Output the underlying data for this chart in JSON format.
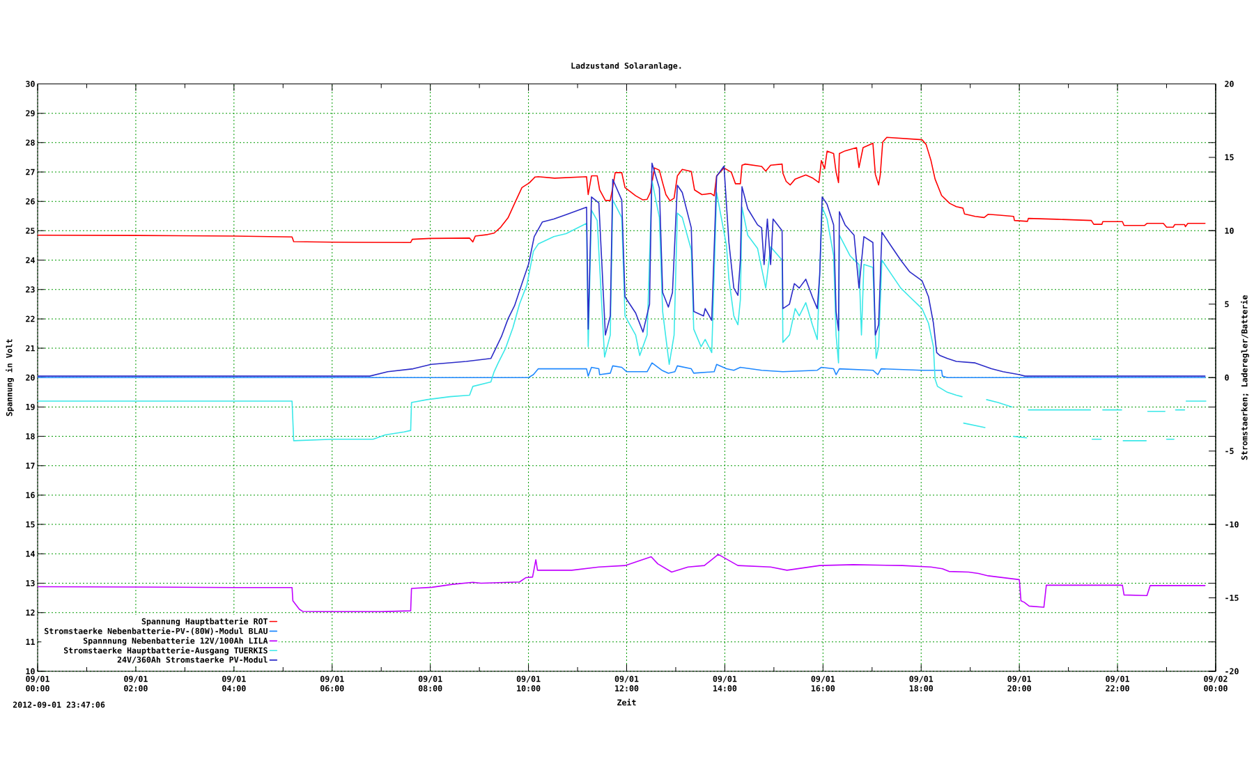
{
  "chart_data": {
    "type": "line",
    "title": "Ladzustand Solaranlage.",
    "xlabel": "Zeit",
    "ylabel": "Spannung in Volt",
    "y2label": "Stromstaerken; Laderegler/Batterie",
    "annotations": [
      "2012-09-01 23:47:06"
    ],
    "xlim": [
      "2012-09-01T00:00",
      "2012-09-02T00:00"
    ],
    "xticks": [
      {
        "value": "2012-09-01T00:00",
        "label": "09/01 00:00"
      },
      {
        "value": "2012-09-01T01:00",
        "label": null
      },
      {
        "value": "2012-09-01T02:00",
        "label": "09/01 02:00"
      },
      {
        "value": "2012-09-01T03:00",
        "label": null
      },
      {
        "value": "2012-09-01T04:00",
        "label": "09/01 04:00"
      },
      {
        "value": "2012-09-01T05:00",
        "label": null
      },
      {
        "value": "2012-09-01T06:00",
        "label": "09/01 06:00"
      },
      {
        "value": "2012-09-01T07:00",
        "label": null
      },
      {
        "value": "2012-09-01T08:00",
        "label": "09/01 08:00"
      },
      {
        "value": "2012-09-01T09:00",
        "label": null
      },
      {
        "value": "2012-09-01T10:00",
        "label": "09/01 10:00"
      },
      {
        "value": "2012-09-01T11:00",
        "label": null
      },
      {
        "value": "2012-09-01T12:00",
        "label": "09/01 12:00"
      },
      {
        "value": "2012-09-01T13:00",
        "label": null
      },
      {
        "value": "2012-09-01T14:00",
        "label": "09/01 14:00"
      },
      {
        "value": "2012-09-01T15:00",
        "label": null
      },
      {
        "value": "2012-09-01T16:00",
        "label": "09/01 16:00"
      },
      {
        "value": "2012-09-01T17:00",
        "label": null
      },
      {
        "value": "2012-09-01T18:00",
        "label": "09/01 18:00"
      },
      {
        "value": "2012-09-01T19:00",
        "label": null
      },
      {
        "value": "2012-09-01T20:00",
        "label": "09/01 20:00"
      },
      {
        "value": "2012-09-01T21:00",
        "label": null
      },
      {
        "value": "2012-09-01T22:00",
        "label": "09/01 22:00"
      },
      {
        "value": "2012-09-01T23:00",
        "label": null
      },
      {
        "value": "2012-09-02T00:00",
        "label": "09/02 00:00"
      }
    ],
    "ylim": [
      10,
      30
    ],
    "yticks": [
      10,
      11,
      12,
      13,
      14,
      15,
      16,
      17,
      18,
      19,
      20,
      21,
      22,
      23,
      24,
      25,
      26,
      27,
      28,
      29,
      30
    ],
    "y2lim": [
      -20,
      20
    ],
    "y2ticks": [
      -20,
      -15,
      -10,
      -5,
      0,
      5,
      10,
      15,
      20
    ],
    "grid": true,
    "legend": "bottom left",
    "series": [
      {
        "name": "Spannung Hauptbatterie ROT",
        "color": "#ff0000",
        "x": [
          "2012-09-01T00:00",
          "2012-09-01T02:00",
          "2012-09-01T04:00",
          "2012-09-01T05:11",
          "2012-09-01T05:13",
          "2012-09-01T06:00",
          "2012-09-01T07:36",
          "2012-09-01T07:38",
          "2012-09-01T08:00",
          "2012-09-01T08:48",
          "2012-09-01T08:52",
          "2012-09-01T08:55",
          "2012-09-01T09:10",
          "2012-09-01T09:18",
          "2012-09-01T09:26",
          "2012-09-01T09:35",
          "2012-09-01T09:44",
          "2012-09-01T09:52",
          "2012-09-01T10:01",
          "2012-09-01T10:08",
          "2012-09-01T10:12",
          "2012-09-01T10:32",
          "2012-09-01T11:11",
          "2012-09-01T11:13",
          "2012-09-01T11:17",
          "2012-09-01T11:24",
          "2012-09-01T11:27",
          "2012-09-01T11:34",
          "2012-09-01T11:40",
          "2012-09-01T11:43",
          "2012-09-01T11:46",
          "2012-09-01T11:54",
          "2012-09-01T11:58",
          "2012-09-01T12:11",
          "2012-09-01T12:20",
          "2012-09-01T12:25",
          "2012-09-01T12:29",
          "2012-09-01T12:34",
          "2012-09-01T12:40",
          "2012-09-01T12:44",
          "2012-09-01T12:48",
          "2012-09-01T12:53",
          "2012-09-01T12:58",
          "2012-09-01T13:02",
          "2012-09-01T13:08",
          "2012-09-01T13:19",
          "2012-09-01T13:23",
          "2012-09-01T13:32",
          "2012-09-01T13:43",
          "2012-09-01T13:47",
          "2012-09-01T13:50",
          "2012-09-01T13:59",
          "2012-09-01T14:08",
          "2012-09-01T14:13",
          "2012-09-01T14:19",
          "2012-09-01T14:21",
          "2012-09-01T14:25",
          "2012-09-01T14:45",
          "2012-09-01T14:50",
          "2012-09-01T14:56",
          "2012-09-01T15:10",
          "2012-09-01T15:11",
          "2012-09-01T15:15",
          "2012-09-01T15:20",
          "2012-09-01T15:26",
          "2012-09-01T15:39",
          "2012-09-01T15:47",
          "2012-09-01T15:55",
          "2012-09-01T15:58",
          "2012-09-01T16:02",
          "2012-09-01T16:05",
          "2012-09-01T16:13",
          "2012-09-01T16:16",
          "2012-09-01T16:19",
          "2012-09-01T16:20",
          "2012-09-01T16:27",
          "2012-09-01T16:41",
          "2012-09-01T16:44",
          "2012-09-01T16:49",
          "2012-09-01T17:01",
          "2012-09-01T17:04",
          "2012-09-01T17:08",
          "2012-09-01T17:10",
          "2012-09-01T17:13",
          "2012-09-01T17:18",
          "2012-09-01T18:01",
          "2012-09-01T18:06",
          "2012-09-01T18:12",
          "2012-09-01T18:17",
          "2012-09-01T18:25",
          "2012-09-01T18:35",
          "2012-09-01T18:43",
          "2012-09-01T18:51",
          "2012-09-01T18:53",
          "2012-09-01T19:06",
          "2012-09-01T19:17",
          "2012-09-01T19:22",
          "2012-09-01T19:36",
          "2012-09-01T19:53",
          "2012-09-01T19:54",
          "2012-09-01T20:10",
          "2012-09-01T20:11",
          "2012-09-01T20:46",
          "2012-09-01T21:28",
          "2012-09-01T21:31",
          "2012-09-01T21:41",
          "2012-09-01T21:42",
          "2012-09-01T22:06",
          "2012-09-01T22:08",
          "2012-09-01T22:33",
          "2012-09-01T22:36",
          "2012-09-01T22:56",
          "2012-09-01T23:00",
          "2012-09-01T23:08",
          "2012-09-01T23:10",
          "2012-09-01T23:22",
          "2012-09-01T23:23",
          "2012-09-01T23:26",
          "2012-09-01T23:47"
        ],
        "values": [
          24.85,
          24.84,
          24.82,
          24.79,
          24.63,
          24.61,
          24.6,
          24.71,
          24.74,
          24.75,
          24.62,
          24.82,
          24.87,
          24.92,
          25.12,
          25.44,
          25.99,
          26.47,
          26.63,
          26.83,
          26.84,
          26.79,
          26.84,
          26.23,
          26.87,
          26.87,
          26.39,
          26.03,
          26.03,
          26.47,
          26.98,
          26.98,
          26.47,
          26.19,
          26.05,
          26.07,
          26.31,
          27.14,
          27.06,
          26.63,
          26.23,
          26.02,
          26.11,
          26.87,
          27.09,
          27.02,
          26.39,
          26.23,
          26.27,
          26.19,
          26.87,
          27.14,
          26.99,
          26.6,
          26.6,
          27.23,
          27.27,
          27.19,
          27.03,
          27.23,
          27.27,
          26.96,
          26.68,
          26.56,
          26.76,
          26.9,
          26.8,
          26.64,
          27.39,
          27.11,
          27.71,
          27.63,
          27.0,
          26.64,
          27.63,
          27.72,
          27.83,
          27.15,
          27.83,
          27.98,
          26.92,
          26.56,
          26.9,
          28.02,
          28.18,
          28.1,
          27.94,
          27.39,
          26.76,
          26.2,
          25.93,
          25.82,
          25.77,
          25.57,
          25.49,
          25.45,
          25.56,
          25.53,
          25.49,
          25.35,
          25.32,
          25.42,
          25.39,
          25.35,
          25.22,
          25.22,
          25.31,
          25.31,
          25.18,
          25.18,
          25.25,
          25.25,
          25.12,
          25.12,
          25.21,
          25.21,
          25.14,
          25.25,
          25.25
        ]
      },
      {
        "name": "Stromstaerke Nebenbatterie-PV-(80W)-Modul BLAU",
        "color": "#1e88ff",
        "axis": "y2",
        "x": [
          "2012-09-01T00:00",
          "2012-09-01T09:54",
          "2012-09-01T10:00",
          "2012-09-01T10:06",
          "2012-09-01T10:12",
          "2012-09-01T11:11",
          "2012-09-01T11:13",
          "2012-09-01T11:17",
          "2012-09-01T11:26",
          "2012-09-01T11:27",
          "2012-09-01T11:40",
          "2012-09-01T11:43",
          "2012-09-01T11:54",
          "2012-09-01T12:00",
          "2012-09-01T12:25",
          "2012-09-01T12:31",
          "2012-09-01T12:43",
          "2012-09-01T12:51",
          "2012-09-01T12:59",
          "2012-09-01T13:02",
          "2012-09-01T13:19",
          "2012-09-01T13:22",
          "2012-09-01T13:47",
          "2012-09-01T13:50",
          "2012-09-01T14:02",
          "2012-09-01T14:11",
          "2012-09-01T14:19",
          "2012-09-01T14:45",
          "2012-09-01T15:11",
          "2012-09-01T15:53",
          "2012-09-01T15:58",
          "2012-09-01T16:13",
          "2012-09-01T16:16",
          "2012-09-01T16:20",
          "2012-09-01T17:01",
          "2012-09-01T17:07",
          "2012-09-01T17:11",
          "2012-09-01T18:01",
          "2012-09-01T18:25",
          "2012-09-01T18:26",
          "2012-09-01T18:32",
          "2012-09-01T23:47"
        ],
        "values": [
          0,
          0,
          0,
          0.2,
          0.6,
          0.6,
          0.1,
          0.7,
          0.6,
          0.2,
          0.3,
          0.8,
          0.7,
          0.4,
          0.4,
          1.0,
          0.5,
          0.3,
          0.4,
          0.8,
          0.6,
          0.3,
          0.4,
          0.9,
          0.6,
          0.5,
          0.7,
          0.5,
          0.4,
          0.5,
          0.7,
          0.6,
          0.2,
          0.6,
          0.5,
          0.2,
          0.6,
          0.5,
          0.5,
          0.1,
          0,
          0
        ]
      },
      {
        "name": "Spannnung Nebenbatterie 12V/100Ah LILA",
        "color": "#c000ff",
        "x": [
          "2012-09-01T00:00",
          "2012-09-01T02:00",
          "2012-09-01T04:00",
          "2012-09-01T05:11",
          "2012-09-01T05:12",
          "2012-09-01T05:20",
          "2012-09-01T05:24",
          "2012-09-01T06:00",
          "2012-09-01T07:00",
          "2012-09-01T07:36",
          "2012-09-01T07:37",
          "2012-09-01T08:02",
          "2012-09-01T08:27",
          "2012-09-01T08:52",
          "2012-09-01T09:02",
          "2012-09-01T09:49",
          "2012-09-01T09:57",
          "2012-09-01T10:05",
          "2012-09-01T10:09",
          "2012-09-01T10:11",
          "2012-09-01T10:53",
          "2012-09-01T11:26",
          "2012-09-01T11:58",
          "2012-09-01T12:30",
          "2012-09-01T12:38",
          "2012-09-01T12:55",
          "2012-09-01T13:15",
          "2012-09-01T13:35",
          "2012-09-01T13:52",
          "2012-09-01T14:16",
          "2012-09-01T14:56",
          "2012-09-01T15:16",
          "2012-09-01T15:56",
          "2012-09-01T16:37",
          "2012-09-01T17:37",
          "2012-09-01T18:12",
          "2012-09-01T18:26",
          "2012-09-01T18:34",
          "2012-09-01T18:58",
          "2012-09-01T19:10",
          "2012-09-01T19:22",
          "2012-09-01T20:00",
          "2012-09-01T20:02",
          "2012-09-01T20:06",
          "2012-09-01T20:12",
          "2012-09-01T20:30",
          "2012-09-01T20:33",
          "2012-09-01T22:06",
          "2012-09-01T22:08",
          "2012-09-01T22:36",
          "2012-09-01T22:40",
          "2012-09-01T23:47"
        ],
        "values": [
          12.88,
          12.87,
          12.85,
          12.85,
          12.4,
          12.11,
          12.04,
          12.03,
          12.03,
          12.06,
          12.82,
          12.86,
          12.96,
          13.03,
          13.0,
          13.04,
          13.19,
          13.21,
          13.8,
          13.44,
          13.44,
          13.55,
          13.6,
          13.9,
          13.66,
          13.38,
          13.55,
          13.6,
          13.98,
          13.6,
          13.55,
          13.44,
          13.6,
          13.63,
          13.6,
          13.55,
          13.49,
          13.4,
          13.38,
          13.33,
          13.25,
          13.12,
          12.4,
          12.35,
          12.22,
          12.18,
          12.93,
          12.93,
          12.6,
          12.58,
          12.92,
          12.92
        ]
      },
      {
        "name": "Stromstaerke Hauptbatterie-Ausgang TUERKIS",
        "color": "#3ae8e8",
        "axis": "y2",
        "x": [
          "2012-09-01T00:00",
          "2012-09-01T05:11",
          "2012-09-01T05:13",
          "2012-09-01T06:02",
          "2012-09-01T06:50",
          "2012-09-01T07:05",
          "2012-09-01T07:28",
          "2012-09-01T07:36",
          "2012-09-01T07:37",
          "2012-09-01T07:56",
          "2012-09-01T08:24",
          "2012-09-01T08:48",
          "2012-09-01T08:52",
          "2012-09-01T09:14",
          "2012-09-01T09:18",
          "2012-09-01T09:23",
          "2012-09-01T09:32",
          "2012-09-01T09:41",
          "2012-09-01T09:49",
          "2012-09-01T09:58",
          "2012-09-01T10:06",
          "2012-09-01T10:12",
          "2012-09-01T10:31",
          "2012-09-01T10:46",
          "2012-09-01T11:11",
          "2012-09-01T11:13",
          "2012-09-01T11:17",
          "2012-09-01T11:24",
          "2012-09-01T11:33",
          "2012-09-01T11:40",
          "2012-09-01T11:43",
          "2012-09-01T11:54",
          "2012-09-01T11:58",
          "2012-09-01T12:11",
          "2012-09-01T12:16",
          "2012-09-01T12:25",
          "2012-09-01T12:31",
          "2012-09-01T12:40",
          "2012-09-01T12:44",
          "2012-09-01T12:52",
          "2012-09-01T12:58",
          "2012-09-01T13:02",
          "2012-09-01T13:08",
          "2012-09-01T13:19",
          "2012-09-01T13:22",
          "2012-09-01T13:31",
          "2012-09-01T13:36",
          "2012-09-01T13:44",
          "2012-09-01T13:50",
          "2012-09-01T14:02",
          "2012-09-01T14:05",
          "2012-09-01T14:11",
          "2012-09-01T14:16",
          "2012-09-01T14:19",
          "2012-09-01T14:21",
          "2012-09-01T14:28",
          "2012-09-01T14:40",
          "2012-09-01T14:50",
          "2012-09-01T14:56",
          "2012-09-01T15:10",
          "2012-09-01T15:11",
          "2012-09-01T15:19",
          "2012-09-01T15:26",
          "2012-09-01T15:31",
          "2012-09-01T15:39",
          "2012-09-01T15:47",
          "2012-09-01T15:53",
          "2012-09-01T15:59",
          "2012-09-01T16:05",
          "2012-09-01T16:13",
          "2012-09-01T16:16",
          "2012-09-01T16:19",
          "2012-09-01T16:20",
          "2012-09-01T16:33",
          "2012-09-01T16:44",
          "2012-09-01T16:47",
          "2012-09-01T16:50",
          "2012-09-01T17:01",
          "2012-09-01T17:05",
          "2012-09-01T17:08",
          "2012-09-01T17:12",
          "2012-09-01T17:24",
          "2012-09-01T17:35",
          "2012-09-01T17:46",
          "2012-09-01T18:01",
          "2012-09-01T18:09",
          "2012-09-01T18:15",
          "2012-09-01T18:17",
          "2012-09-01T18:20",
          "2012-09-01T18:32",
          "2012-09-01T18:43",
          "2012-09-01T18:50",
          "2012-09-01T18:51",
          "2012-09-01T18:52",
          "2012-09-01T19:18",
          "2012-09-01T19:19",
          "2012-09-01T19:20",
          "2012-09-01T19:34",
          "2012-09-01T19:51",
          "2012-09-01T19:52",
          "2012-09-01T19:53",
          "2012-09-01T20:09",
          "2012-09-01T20:10",
          "2012-09-01T20:11",
          "2012-09-01T21:27",
          "2012-09-01T21:28",
          "2012-09-01T21:29",
          "2012-09-01T21:40",
          "2012-09-01T21:41",
          "2012-09-01T21:42",
          "2012-09-01T22:05",
          "2012-09-01T22:06",
          "2012-09-01T22:07",
          "2012-09-01T22:35",
          "2012-09-01T22:36",
          "2012-09-01T22:37",
          "2012-09-01T22:58",
          "2012-09-01T22:59",
          "2012-09-01T23:00",
          "2012-09-01T23:09",
          "2012-09-01T23:10",
          "2012-09-01T23:11",
          "2012-09-01T23:22",
          "2012-09-01T23:23",
          "2012-09-01T23:24",
          "2012-09-01T23:48"
        ],
        "values": [
          -1.6,
          -1.6,
          -4.3,
          -4.2,
          -4.2,
          -3.9,
          -3.7,
          -3.6,
          -1.7,
          -1.5,
          -1.3,
          -1.2,
          -0.6,
          -0.3,
          0.4,
          1.0,
          2.0,
          3.4,
          5.0,
          6.3,
          8.6,
          9.1,
          9.6,
          9.8,
          10.5,
          2.1,
          11.4,
          10.7,
          1.4,
          2.9,
          12.1,
          10.9,
          4.2,
          2.9,
          1.5,
          2.9,
          13.4,
          10.9,
          4.5,
          0.9,
          2.9,
          11.2,
          10.9,
          8.7,
          3.3,
          2.1,
          2.6,
          1.7,
          12.6,
          9.0,
          6.7,
          4.2,
          3.6,
          5.3,
          11.6,
          9.7,
          8.8,
          6.1,
          8.9,
          8.0,
          2.4,
          2.9,
          4.7,
          4.2,
          5.1,
          3.6,
          2.6,
          11.6,
          10.8,
          8.3,
          2.9,
          1.0,
          9.7,
          8.3,
          7.7,
          2.9,
          7.7,
          7.5,
          1.3,
          2.1,
          8.0,
          7.0,
          6.1,
          5.5,
          4.7,
          3.7,
          2.1,
          -0.1,
          -0.6,
          -1.0,
          -1.2,
          -1.3,
          null,
          -3.1,
          -3.4,
          null,
          -1.5,
          -1.7,
          -2.0,
          null,
          -4.0,
          -4.1,
          null,
          -2.2,
          -2.2,
          null,
          -4.2,
          -4.2,
          null,
          -2.2,
          -2.2,
          null,
          -4.3,
          -4.3,
          null,
          -2.3,
          -2.3,
          null,
          -4.2,
          -4.2,
          null,
          -2.2,
          -2.2,
          null,
          -1.6,
          -1.6
        ]
      },
      {
        "name": "24V/360Ah Stromstaerke PV-Modul",
        "color": "#2b2bc8",
        "axis": "y2",
        "x": [
          "2012-09-01T00:00",
          "2012-09-01T06:46",
          "2012-09-01T07:08",
          "2012-09-01T07:39",
          "2012-09-01T08:01",
          "2012-09-01T08:44",
          "2012-09-01T09:14",
          "2012-09-01T09:21",
          "2012-09-01T09:27",
          "2012-09-01T09:35",
          "2012-09-01T09:43",
          "2012-09-01T09:52",
          "2012-09-01T10:00",
          "2012-09-01T10:07",
          "2012-09-01T10:17",
          "2012-09-01T10:31",
          "2012-09-01T10:46",
          "2012-09-01T11:11",
          "2012-09-01T11:13",
          "2012-09-01T11:17",
          "2012-09-01T11:26",
          "2012-09-01T11:34",
          "2012-09-01T11:40",
          "2012-09-01T11:43",
          "2012-09-01T11:54",
          "2012-09-01T11:58",
          "2012-09-01T12:11",
          "2012-09-01T12:20",
          "2012-09-01T12:28",
          "2012-09-01T12:31",
          "2012-09-01T12:40",
          "2012-09-01T12:44",
          "2012-09-01T12:51",
          "2012-09-01T12:56",
          "2012-09-01T13:02",
          "2012-09-01T13:08",
          "2012-09-01T13:19",
          "2012-09-01T13:22",
          "2012-09-01T13:34",
          "2012-09-01T13:36",
          "2012-09-01T13:44",
          "2012-09-01T13:50",
          "2012-09-01T13:59",
          "2012-09-01T14:05",
          "2012-09-01T14:11",
          "2012-09-01T14:16",
          "2012-09-01T14:19",
          "2012-09-01T14:21",
          "2012-09-01T14:28",
          "2012-09-01T14:40",
          "2012-09-01T14:45",
          "2012-09-01T14:48",
          "2012-09-01T14:52",
          "2012-09-01T14:56",
          "2012-09-01T14:59",
          "2012-09-01T15:10",
          "2012-09-01T15:11",
          "2012-09-01T15:19",
          "2012-09-01T15:25",
          "2012-09-01T15:31",
          "2012-09-01T15:39",
          "2012-09-01T15:47",
          "2012-09-01T15:53",
          "2012-09-01T15:56",
          "2012-09-01T15:59",
          "2012-09-01T16:05",
          "2012-09-01T16:13",
          "2012-09-01T16:16",
          "2012-09-01T16:19",
          "2012-09-01T16:20",
          "2012-09-01T16:27",
          "2012-09-01T16:38",
          "2012-09-01T16:44",
          "2012-09-01T16:50",
          "2012-09-01T17:01",
          "2012-09-01T17:04",
          "2012-09-01T17:08",
          "2012-09-01T17:12",
          "2012-09-01T17:24",
          "2012-09-01T17:35",
          "2012-09-01T17:46",
          "2012-09-01T18:01",
          "2012-09-01T18:09",
          "2012-09-01T18:15",
          "2012-09-01T18:19",
          "2012-09-01T18:23",
          "2012-09-01T18:32",
          "2012-09-01T18:43",
          "2012-09-01T19:06",
          "2012-09-01T19:26",
          "2012-09-01T19:40",
          "2012-09-01T20:00",
          "2012-09-01T20:07",
          "2012-09-01T23:47"
        ],
        "values": [
          0.1,
          0.1,
          0.4,
          0.6,
          0.9,
          1.1,
          1.3,
          2.1,
          2.8,
          4.0,
          4.9,
          6.4,
          7.7,
          9.6,
          10.6,
          10.8,
          11.1,
          11.6,
          3.3,
          12.3,
          11.9,
          2.9,
          4.2,
          13.5,
          12.1,
          5.5,
          4.4,
          3.1,
          5.0,
          14.6,
          12.9,
          5.8,
          4.8,
          5.8,
          13.1,
          12.6,
          10.2,
          4.5,
          4.2,
          4.7,
          3.9,
          13.7,
          14.4,
          9.2,
          6.1,
          5.6,
          8.0,
          13.0,
          11.5,
          10.4,
          10.2,
          7.7,
          10.8,
          7.7,
          10.8,
          10.0,
          4.7,
          5.0,
          6.4,
          6.1,
          6.7,
          5.5,
          4.7,
          7.0,
          12.3,
          11.8,
          10.4,
          4.5,
          3.2,
          11.3,
          10.4,
          9.7,
          6.1,
          9.6,
          9.2,
          2.9,
          3.6,
          9.9,
          8.9,
          8.0,
          7.2,
          6.6,
          5.5,
          3.7,
          1.7,
          1.5,
          1.3,
          1.1,
          1.0,
          0.6,
          0.4,
          0.2,
          0.1,
          0.1
        ]
      }
    ]
  }
}
